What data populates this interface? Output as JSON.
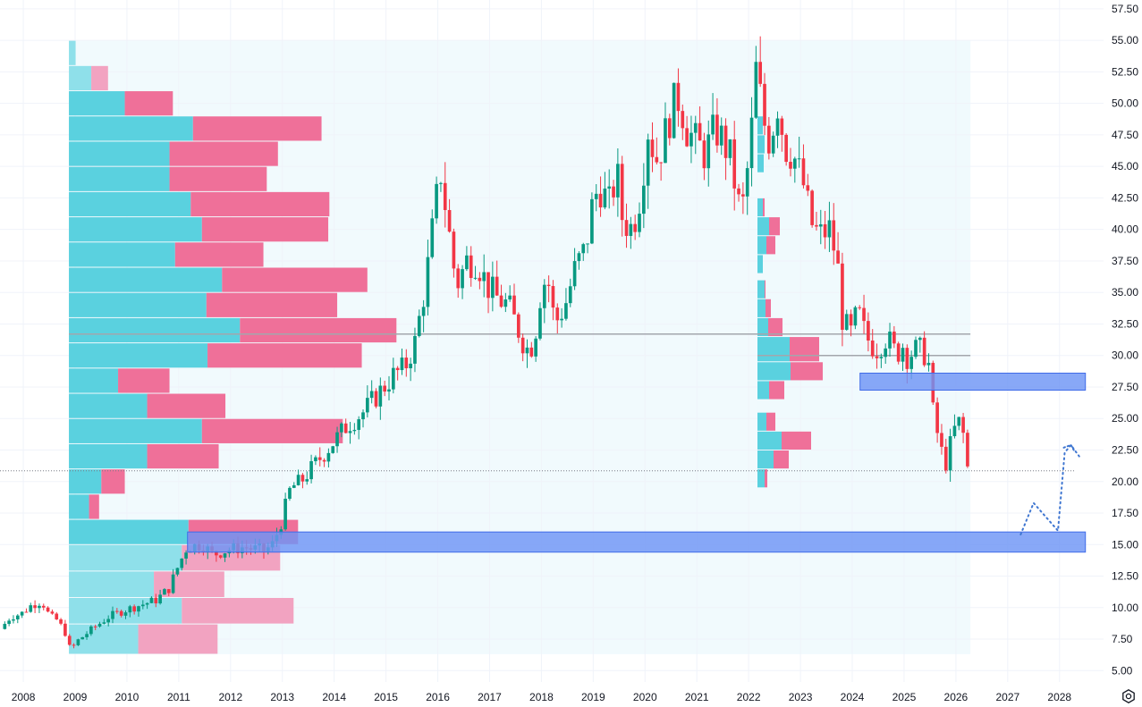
{
  "chart_data": {
    "type": "candlestick",
    "timeframe": "monthly",
    "x_axis": {
      "tick_labels": [
        "2008",
        "2009",
        "2010",
        "2011",
        "2012",
        "2013",
        "2014",
        "2015",
        "2016",
        "2017",
        "2018",
        "2019",
        "2020",
        "2021",
        "2022",
        "2023",
        "2024",
        "2025",
        "2026",
        "2027",
        "2028"
      ],
      "range": [
        2007.55,
        2028.85
      ]
    },
    "y_axis": {
      "position": "right",
      "tick_labels": [
        "5.00",
        "7.50",
        "10.00",
        "12.50",
        "15.00",
        "17.50",
        "20.00",
        "22.50",
        "25.00",
        "27.50",
        "30.00",
        "32.50",
        "35.00",
        "37.50",
        "40.00",
        "42.50",
        "45.00",
        "47.50",
        "50.00",
        "52.50",
        "55.00",
        "57.50"
      ],
      "range": [
        4.1,
        58.2
      ]
    },
    "grid": true,
    "colors": {
      "up": "#089981",
      "down": "#f23645",
      "vp_up": "#5ad1df",
      "vp_down": "#ef7099",
      "vp_up_outside": "#8fe0ea",
      "vp_down_outside": "#f2a3c1",
      "zone": "#6e95f5",
      "zone_border": "#3f6be8",
      "price_line": "#787b86",
      "poc_line": "#a3a6ad",
      "range_bg": "#eff9fd",
      "projection": "#3f76d1"
    },
    "price_anchors": [
      [
        2007.6,
        8.3
      ],
      [
        2007.8,
        9.3
      ],
      [
        2008.0,
        9.5
      ],
      [
        2008.2,
        10.2
      ],
      [
        2008.4,
        10.5
      ],
      [
        2008.55,
        9.3
      ],
      [
        2008.7,
        9.0
      ],
      [
        2008.85,
        8.0
      ],
      [
        2008.95,
        6.6
      ],
      [
        2009.1,
        7.4
      ],
      [
        2009.4,
        8.4
      ],
      [
        2009.7,
        9.3
      ],
      [
        2010.0,
        9.8
      ],
      [
        2010.3,
        10.2
      ],
      [
        2010.6,
        10.6
      ],
      [
        2010.85,
        11.5
      ],
      [
        2011.0,
        13.0
      ],
      [
        2011.2,
        14.8
      ],
      [
        2011.5,
        15.0
      ],
      [
        2011.7,
        14.2
      ],
      [
        2012.0,
        14.6
      ],
      [
        2012.3,
        14.8
      ],
      [
        2012.55,
        14.6
      ],
      [
        2012.7,
        14.5
      ],
      [
        2012.85,
        15.0
      ],
      [
        2013.0,
        16.5
      ],
      [
        2013.2,
        19.5
      ],
      [
        2013.4,
        20.0
      ],
      [
        2013.7,
        21.5
      ],
      [
        2014.0,
        23.0
      ],
      [
        2014.3,
        24.5
      ],
      [
        2014.6,
        25.5
      ],
      [
        2014.8,
        26.5
      ],
      [
        2015.0,
        27.5
      ],
      [
        2015.2,
        28.5
      ],
      [
        2015.4,
        29.0
      ],
      [
        2015.6,
        31.0
      ],
      [
        2015.8,
        35.5
      ],
      [
        2016.0,
        42.0
      ],
      [
        2016.1,
        44.5
      ],
      [
        2016.25,
        40.0
      ],
      [
        2016.4,
        35.5
      ],
      [
        2016.6,
        37.5
      ],
      [
        2016.8,
        37.5
      ],
      [
        2017.0,
        35.5
      ],
      [
        2017.2,
        34.5
      ],
      [
        2017.4,
        34.0
      ],
      [
        2017.6,
        32.0
      ],
      [
        2017.75,
        30.5
      ],
      [
        2017.9,
        31.0
      ],
      [
        2018.0,
        34.5
      ],
      [
        2018.15,
        36.5
      ],
      [
        2018.3,
        32.5
      ],
      [
        2018.5,
        34.0
      ],
      [
        2018.7,
        37.0
      ],
      [
        2018.9,
        38.5
      ],
      [
        2019.0,
        41.5
      ],
      [
        2019.15,
        43.5
      ],
      [
        2019.35,
        42.0
      ],
      [
        2019.5,
        44.5
      ],
      [
        2019.6,
        41.0
      ],
      [
        2019.75,
        40.0
      ],
      [
        2019.9,
        41.5
      ],
      [
        2020.0,
        44.5
      ],
      [
        2020.1,
        48.0
      ],
      [
        2020.25,
        45.5
      ],
      [
        2020.4,
        47.0
      ],
      [
        2020.55,
        49.5
      ],
      [
        2020.7,
        50.5
      ],
      [
        2020.85,
        48.0
      ],
      [
        2021.0,
        47.0
      ],
      [
        2021.2,
        46.0
      ],
      [
        2021.4,
        48.0
      ],
      [
        2021.55,
        47.0
      ],
      [
        2021.7,
        45.5
      ],
      [
        2021.8,
        43.0
      ],
      [
        2021.9,
        41.0
      ],
      [
        2022.0,
        44.0
      ],
      [
        2022.1,
        48.0
      ],
      [
        2022.2,
        53.5
      ],
      [
        2022.3,
        49.0
      ],
      [
        2022.45,
        47.0
      ],
      [
        2022.6,
        50.0
      ],
      [
        2022.75,
        46.5
      ],
      [
        2022.9,
        46.0
      ],
      [
        2023.1,
        43.5
      ],
      [
        2023.25,
        40.5
      ],
      [
        2023.4,
        39.5
      ],
      [
        2023.6,
        40.0
      ],
      [
        2023.75,
        37.5
      ],
      [
        2023.85,
        33.0
      ],
      [
        2024.0,
        31.5
      ],
      [
        2024.15,
        33.5
      ],
      [
        2024.3,
        31.5
      ],
      [
        2024.5,
        30.5
      ],
      [
        2024.7,
        31.5
      ],
      [
        2024.9,
        30.0
      ],
      [
        2025.0,
        31.0
      ],
      [
        2025.1,
        30.0
      ],
      [
        2025.3,
        30.5
      ],
      [
        2025.5,
        30.0
      ],
      [
        2025.6,
        25.5
      ],
      [
        2025.75,
        22.5
      ],
      [
        2025.85,
        21.5
      ],
      [
        2026.0,
        24.0
      ],
      [
        2026.15,
        25.0
      ],
      [
        2026.25,
        21.2
      ]
    ],
    "volume_profiles": [
      {
        "x_start": 2008.88,
        "x_end": 2026.28,
        "top": 55.0,
        "bottom": 6.3,
        "poc": 31.7,
        "bins": [
          {
            "high": 55.0,
            "low": 53.0,
            "up": 0.06,
            "down": 0.0
          },
          {
            "high": 53.0,
            "low": 51.0,
            "up": 0.2,
            "down": 0.15
          },
          {
            "high": 51.0,
            "low": 49.0,
            "up": 0.5,
            "down": 0.43
          },
          {
            "high": 49.0,
            "low": 47.0,
            "up": 1.11,
            "down": 1.15
          },
          {
            "high": 47.0,
            "low": 45.0,
            "up": 0.9,
            "down": 0.97
          },
          {
            "high": 45.0,
            "low": 43.0,
            "up": 0.9,
            "down": 0.87
          },
          {
            "high": 43.0,
            "low": 41.0,
            "up": 1.09,
            "down": 1.24
          },
          {
            "high": 41.0,
            "low": 39.0,
            "up": 1.19,
            "down": 1.13
          },
          {
            "high": 39.0,
            "low": 37.0,
            "up": 0.95,
            "down": 0.79
          },
          {
            "high": 37.0,
            "low": 35.0,
            "up": 1.37,
            "down": 1.3
          },
          {
            "high": 35.0,
            "low": 33.0,
            "up": 1.23,
            "down": 1.17
          },
          {
            "high": 33.0,
            "low": 31.0,
            "up": 1.53,
            "down": 1.4
          },
          {
            "high": 31.0,
            "low": 29.0,
            "up": 1.24,
            "down": 1.38
          },
          {
            "high": 29.0,
            "low": 27.0,
            "up": 0.44,
            "down": 0.46
          },
          {
            "high": 27.0,
            "low": 25.0,
            "up": 0.7,
            "down": 0.7
          },
          {
            "high": 25.0,
            "low": 23.0,
            "up": 1.19,
            "down": 1.26
          },
          {
            "high": 23.0,
            "low": 21.0,
            "up": 0.7,
            "down": 0.64
          },
          {
            "high": 21.0,
            "low": 19.0,
            "up": 0.29,
            "down": 0.21
          },
          {
            "high": 19.0,
            "low": 17.0,
            "up": 0.18,
            "down": 0.09
          },
          {
            "high": 17.0,
            "low": 15.0,
            "up": 1.07,
            "down": 0.98
          },
          {
            "high": 15.0,
            "low": 12.9,
            "up": 1.01,
            "down": 0.88
          },
          {
            "high": 12.9,
            "low": 10.8,
            "up": 0.76,
            "down": 0.63
          },
          {
            "high": 10.8,
            "low": 8.7,
            "up": 1.01,
            "down": 1.0
          },
          {
            "high": 8.7,
            "low": 6.3,
            "up": 0.62,
            "down": 0.71
          }
        ]
      },
      {
        "x_start": 2022.17,
        "x_end": 2026.28,
        "top": 55.0,
        "bottom": 20.8,
        "poc": 30.0,
        "bins": [
          {
            "high": 49.0,
            "low": 47.5,
            "up": 0.06,
            "down": 0.0
          },
          {
            "high": 47.5,
            "low": 46.0,
            "up": 0.08,
            "down": 0.0
          },
          {
            "high": 46.0,
            "low": 44.5,
            "up": 0.07,
            "down": 0.0
          },
          {
            "high": 42.5,
            "low": 41.0,
            "up": 0.06,
            "down": 0.02
          },
          {
            "high": 41.0,
            "low": 39.5,
            "up": 0.13,
            "down": 0.12
          },
          {
            "high": 39.5,
            "low": 38.0,
            "up": 0.1,
            "down": 0.1
          },
          {
            "high": 38.0,
            "low": 36.5,
            "up": 0.06,
            "down": 0.0
          },
          {
            "high": 36.0,
            "low": 34.5,
            "up": 0.08,
            "down": 0.01
          },
          {
            "high": 34.5,
            "low": 33.0,
            "up": 0.09,
            "down": 0.06
          },
          {
            "high": 33.0,
            "low": 31.5,
            "up": 0.12,
            "down": 0.16
          },
          {
            "high": 31.5,
            "low": 29.5,
            "up": 0.36,
            "down": 0.33
          },
          {
            "high": 29.5,
            "low": 28.0,
            "up": 0.37,
            "down": 0.36
          },
          {
            "high": 28.0,
            "low": 26.5,
            "up": 0.13,
            "down": 0.17
          },
          {
            "high": 25.5,
            "low": 24.0,
            "up": 0.1,
            "down": 0.1
          },
          {
            "high": 24.0,
            "low": 22.5,
            "up": 0.27,
            "down": 0.33
          },
          {
            "high": 22.5,
            "low": 21.0,
            "up": 0.18,
            "down": 0.17
          },
          {
            "high": 21.0,
            "low": 19.5,
            "up": 0.08,
            "down": 0.03
          }
        ]
      }
    ],
    "zones": [
      {
        "x_start": 2011.17,
        "x_end": 2028.5,
        "top": 16.0,
        "bottom": 14.4
      },
      {
        "x_start": 2024.15,
        "x_end": 2028.5,
        "top": 28.6,
        "bottom": 27.25
      }
    ],
    "horizontal_lines": [
      {
        "kind": "poc",
        "x_start": 2008.88,
        "x_end": 2026.28,
        "price": 31.7
      },
      {
        "kind": "poc",
        "x_start": 2022.17,
        "x_end": 2026.28,
        "price": 30.0
      },
      {
        "kind": "last_price",
        "x_start": 2007.55,
        "x_end": 2028.3,
        "price": 20.85
      }
    ],
    "projection_path": [
      [
        2027.25,
        15.8
      ],
      [
        2027.5,
        18.3
      ],
      [
        2027.97,
        16.1
      ],
      [
        2028.1,
        22.3
      ],
      [
        2028.22,
        22.9
      ],
      [
        2028.38,
        22.0
      ]
    ]
  }
}
